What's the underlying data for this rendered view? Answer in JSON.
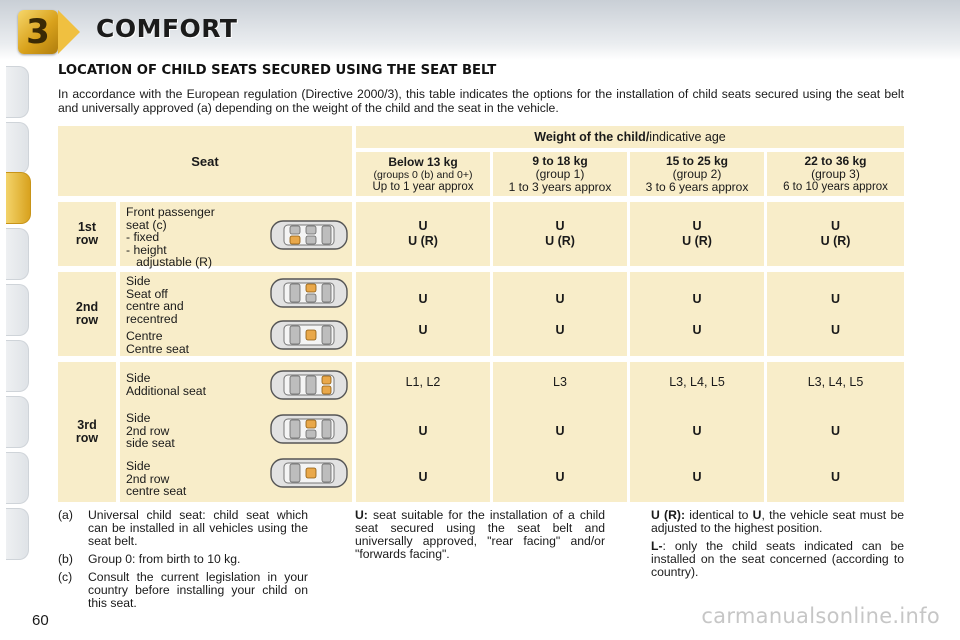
{
  "header": {
    "chapter_number": "3",
    "chapter_title": "COMFORT"
  },
  "section_title": "LOCATION OF CHILD SEATS SECURED USING THE SEAT BELT",
  "intro": "In accordance with the European regulation (Directive 2000/3), this table indicates the options for the installation of child seats secured using the seat belt and universally approved (a) depending on the weight of the child and the seat in the vehicle.",
  "table": {
    "seat_header": "Seat",
    "weight_header_bold": "Weight of the child/",
    "weight_header_rest": "indicative age",
    "groups": [
      {
        "line1": "Below 13 kg",
        "line2": "(groups 0 (b) and 0+)",
        "line3": "Up to 1 year approx"
      },
      {
        "line1": "9 to 18 kg",
        "line2": "(group 1)",
        "line3": "1 to 3 years approx"
      },
      {
        "line1": "15 to 25 kg",
        "line2": "(group 2)",
        "line3": "3 to 6 years approx"
      },
      {
        "line1": "22 to 36 kg",
        "line2": "(group 3)",
        "line3": "6 to 10 years approx"
      }
    ],
    "row1": {
      "label_line1": "1st",
      "label_line2": "row",
      "desc": [
        "Front passenger",
        "seat (c)",
        "- fixed",
        "- height",
        "   adjustable (R)"
      ],
      "values": [
        [
          "U",
          "U (R)"
        ],
        [
          "U",
          "U (R)"
        ],
        [
          "U",
          "U (R)"
        ],
        [
          "U",
          "U (R)"
        ]
      ]
    },
    "row2": {
      "label_line1": "2nd",
      "label_line2": "row",
      "desc_a": [
        "Side",
        "Seat off",
        "centre and",
        "recentred"
      ],
      "desc_b": [
        "Centre",
        "Centre seat"
      ],
      "values_a": [
        "U",
        "U",
        "U",
        "U"
      ],
      "values_b": [
        "U",
        "U",
        "U",
        "U"
      ]
    },
    "row3": {
      "label_line1": "3rd",
      "label_line2": "row",
      "desc_a": [
        "Side",
        "Additional seat"
      ],
      "desc_b": [
        "Side",
        "2nd row",
        "side seat"
      ],
      "desc_c": [
        "Side",
        "2nd row",
        "centre seat"
      ],
      "values_a": [
        "L1, L2",
        "L3",
        "L3, L4, L5",
        "L3, L4, L5"
      ],
      "values_b": [
        "U",
        "U",
        "U",
        "U"
      ],
      "values_c": [
        "U",
        "U",
        "U",
        "U"
      ]
    }
  },
  "notes_left": [
    {
      "mark": "(a)",
      "text": "Universal child seat: child seat which can be installed in all vehicles using the seat belt."
    },
    {
      "mark": "(b)",
      "text": "Group 0: from birth to 10 kg."
    },
    {
      "mark": "(c)",
      "text": "Consult the current legislation in your country before installing your child on this seat."
    }
  ],
  "note_middle": {
    "term": "U:",
    "text": " seat suitable for the installation of a child seat secured using the seat belt and universally approved, \"rear facing\" and/or \"forwards facing\"."
  },
  "notes_right": [
    {
      "term": "U (R):",
      "text": " identical to ",
      "term2": "U",
      "text2": ", the vehicle seat must be adjusted to the highest position."
    },
    {
      "term": "L-",
      "text": ": only the child seats indicated can be installed on the seat concerned (according to country)."
    }
  ],
  "page_number": "60",
  "watermark": "carmanualsonline.info",
  "colors": {
    "table_cell": "#f8edc9",
    "accent_gold": "#d9a21c"
  }
}
